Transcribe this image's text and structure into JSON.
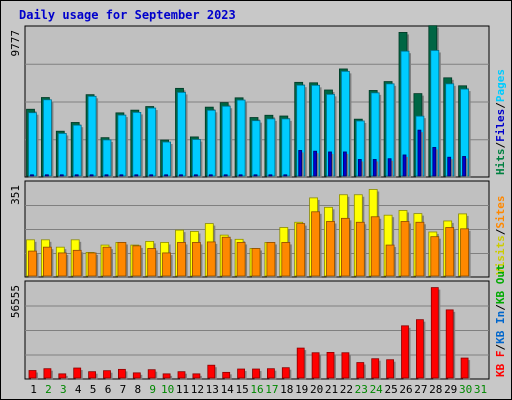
{
  "chart_data": {
    "type": "bar",
    "title": "Daily usage for September 2023",
    "categories": [
      "1",
      "2",
      "3",
      "4",
      "5",
      "6",
      "7",
      "8",
      "9",
      "10",
      "11",
      "12",
      "13",
      "14",
      "15",
      "16",
      "17",
      "18",
      "19",
      "20",
      "21",
      "22",
      "23",
      "24",
      "25",
      "26",
      "27",
      "28",
      "29",
      "30",
      "31"
    ],
    "weekend_days": [
      "2",
      "3",
      "9",
      "10",
      "16",
      "17",
      "23",
      "24",
      "30",
      "31"
    ],
    "colors": {
      "hits": "#006644",
      "files": "#00ccff",
      "pages": "#0000cc",
      "visits": "#ffff00",
      "sites": "#ff8800",
      "kbytes": "#ff0000",
      "weekday_label": "#000000",
      "weekend_label": "#008800",
      "title": "#0000cc",
      "plot_bg": "#c0c0c0",
      "grid": "#808080"
    },
    "panels": [
      {
        "id": "hits-files-pages",
        "ymax_label": "9777",
        "ylim": [
          0,
          9777
        ],
        "legend": [
          {
            "text": "Hits",
            "color": "#008040"
          },
          {
            "text": "/",
            "color": "#000000"
          },
          {
            "text": "Files",
            "color": "#0000cc"
          },
          {
            "text": "/",
            "color": "#000000"
          },
          {
            "text": "Pages",
            "color": "#00ccff"
          }
        ],
        "series": [
          {
            "name": "Hits",
            "values": [
              4440,
              5220,
              2980,
              3560,
              5410,
              2550,
              4200,
              4380,
              4620,
              2390,
              5830,
              2600,
              4580,
              4880,
              5200,
              3890,
              4040,
              3990,
              6230,
              6200,
              5720,
              7120,
              3780,
              5690,
              6280,
              9550,
              5480,
              10000,
              6530,
              6000,
              null
            ]
          },
          {
            "name": "Files",
            "values": [
              4210,
              5070,
              2830,
              3380,
              5300,
              2400,
              4050,
              4230,
              4520,
              2260,
              5560,
              2430,
              4370,
              4640,
              5050,
              3680,
              3800,
              3800,
              6040,
              6030,
              5430,
              6960,
              3660,
              5530,
              6130,
              8300,
              3980,
              8350,
              6130,
              5780,
              null
            ]
          },
          {
            "name": "Pages",
            "values": [
              80,
              80,
              80,
              80,
              80,
              80,
              80,
              80,
              80,
              80,
              80,
              80,
              80,
              80,
              80,
              80,
              80,
              80,
              1700,
              1650,
              1600,
              1600,
              1100,
              1100,
              1150,
              1400,
              3050,
              1900,
              1250,
              1300,
              null
            ]
          }
        ]
      },
      {
        "id": "visits-sites",
        "ymax_label": "351",
        "ylim": [
          0,
          351
        ],
        "legend": [
          {
            "text": "Visits",
            "color": "#cccc00"
          },
          {
            "text": "/",
            "color": "#000000"
          },
          {
            "text": "Sites",
            "color": "#ff8800"
          }
        ],
        "series": [
          {
            "name": "Visits",
            "values": [
              138,
              138,
              110,
              138,
              90,
              118,
              128,
              118,
              132,
              128,
              175,
              170,
              200,
              156,
              140,
              105,
              128,
              185,
              205,
              298,
              262,
              310,
              310,
              330,
              232,
              250,
              238,
              168,
              210,
              237,
              null
            ]
          },
          {
            "name": "Sites",
            "values": [
              95,
              110,
              88,
              98,
              88,
              110,
              128,
              115,
              105,
              88,
              128,
              128,
              130,
              148,
              128,
              105,
              128,
              128,
              200,
              245,
              208,
              220,
              205,
              226,
              118,
              208,
              205,
              150,
              185,
              180,
              null
            ]
          }
        ]
      },
      {
        "id": "kbytes",
        "ymax_label": "56555",
        "ylim": [
          0,
          56555
        ],
        "legend": [
          {
            "text": "KB F",
            "color": "#ff0000"
          },
          {
            "text": "/",
            "color": "#000000"
          },
          {
            "text": "KB In",
            "color": "#0066cc"
          },
          {
            "text": "/",
            "color": "#000000"
          },
          {
            "text": "KB Out",
            "color": "#00aa00"
          }
        ],
        "series": [
          {
            "name": "KB F",
            "values": [
              4500,
              5600,
              2500,
              6000,
              3800,
              4400,
              5200,
              3100,
              5000,
              2500,
              3800,
              2500,
              7700,
              3400,
              5400,
              5400,
              5600,
              6200,
              18000,
              15200,
              15400,
              15200,
              9300,
              11600,
              11000,
              31400,
              35100,
              54400,
              41000,
              12000,
              null
            ]
          }
        ]
      }
    ]
  }
}
